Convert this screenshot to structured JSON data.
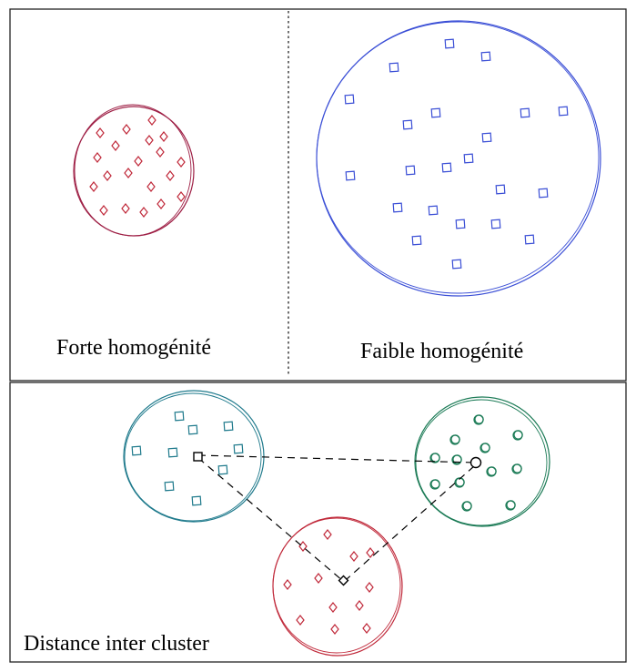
{
  "panels": {
    "top_left": {
      "label": "Forte homogénité"
    },
    "top_right": {
      "label": "Faible homogénité"
    },
    "bottom": {
      "label": "Distance inter cluster"
    }
  },
  "colors": {
    "frame": "#222222",
    "red_cluster": "#c0293a",
    "red_cluster_outline": "#9e1f45",
    "blue_cluster": "#3b4fd6",
    "teal_cluster": "#1f7a8c",
    "green_cluster": "#1a7a55",
    "centroid": "#000000"
  },
  "icons": {
    "red_points": "diamond",
    "blue_points": "square",
    "teal_points": "square",
    "green_points": "circle",
    "centroids": "small-square-and-circle"
  }
}
